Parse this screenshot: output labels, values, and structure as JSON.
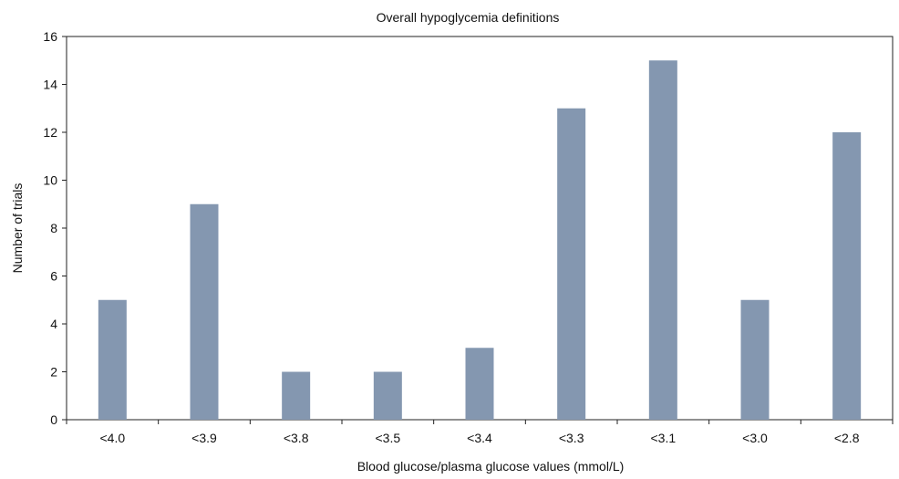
{
  "chart_data": {
    "type": "bar",
    "title": "Overall hypoglycemia definitions",
    "xlabel": "Blood glucose/plasma glucose values (mmol/L)",
    "ylabel": "Number of trials",
    "categories": [
      "<4.0",
      "<3.9",
      "<3.8",
      "<3.5",
      "<3.4",
      "<3.3",
      "<3.1",
      "<3.0",
      "<2.8"
    ],
    "values": [
      5,
      9,
      2,
      2,
      3,
      13,
      15,
      5,
      12
    ],
    "ylim": [
      0,
      16
    ],
    "yticks": [
      0,
      2,
      4,
      6,
      8,
      10,
      12,
      14,
      16
    ],
    "bar_color": "#8497b0",
    "grid": false,
    "legend": "none"
  }
}
